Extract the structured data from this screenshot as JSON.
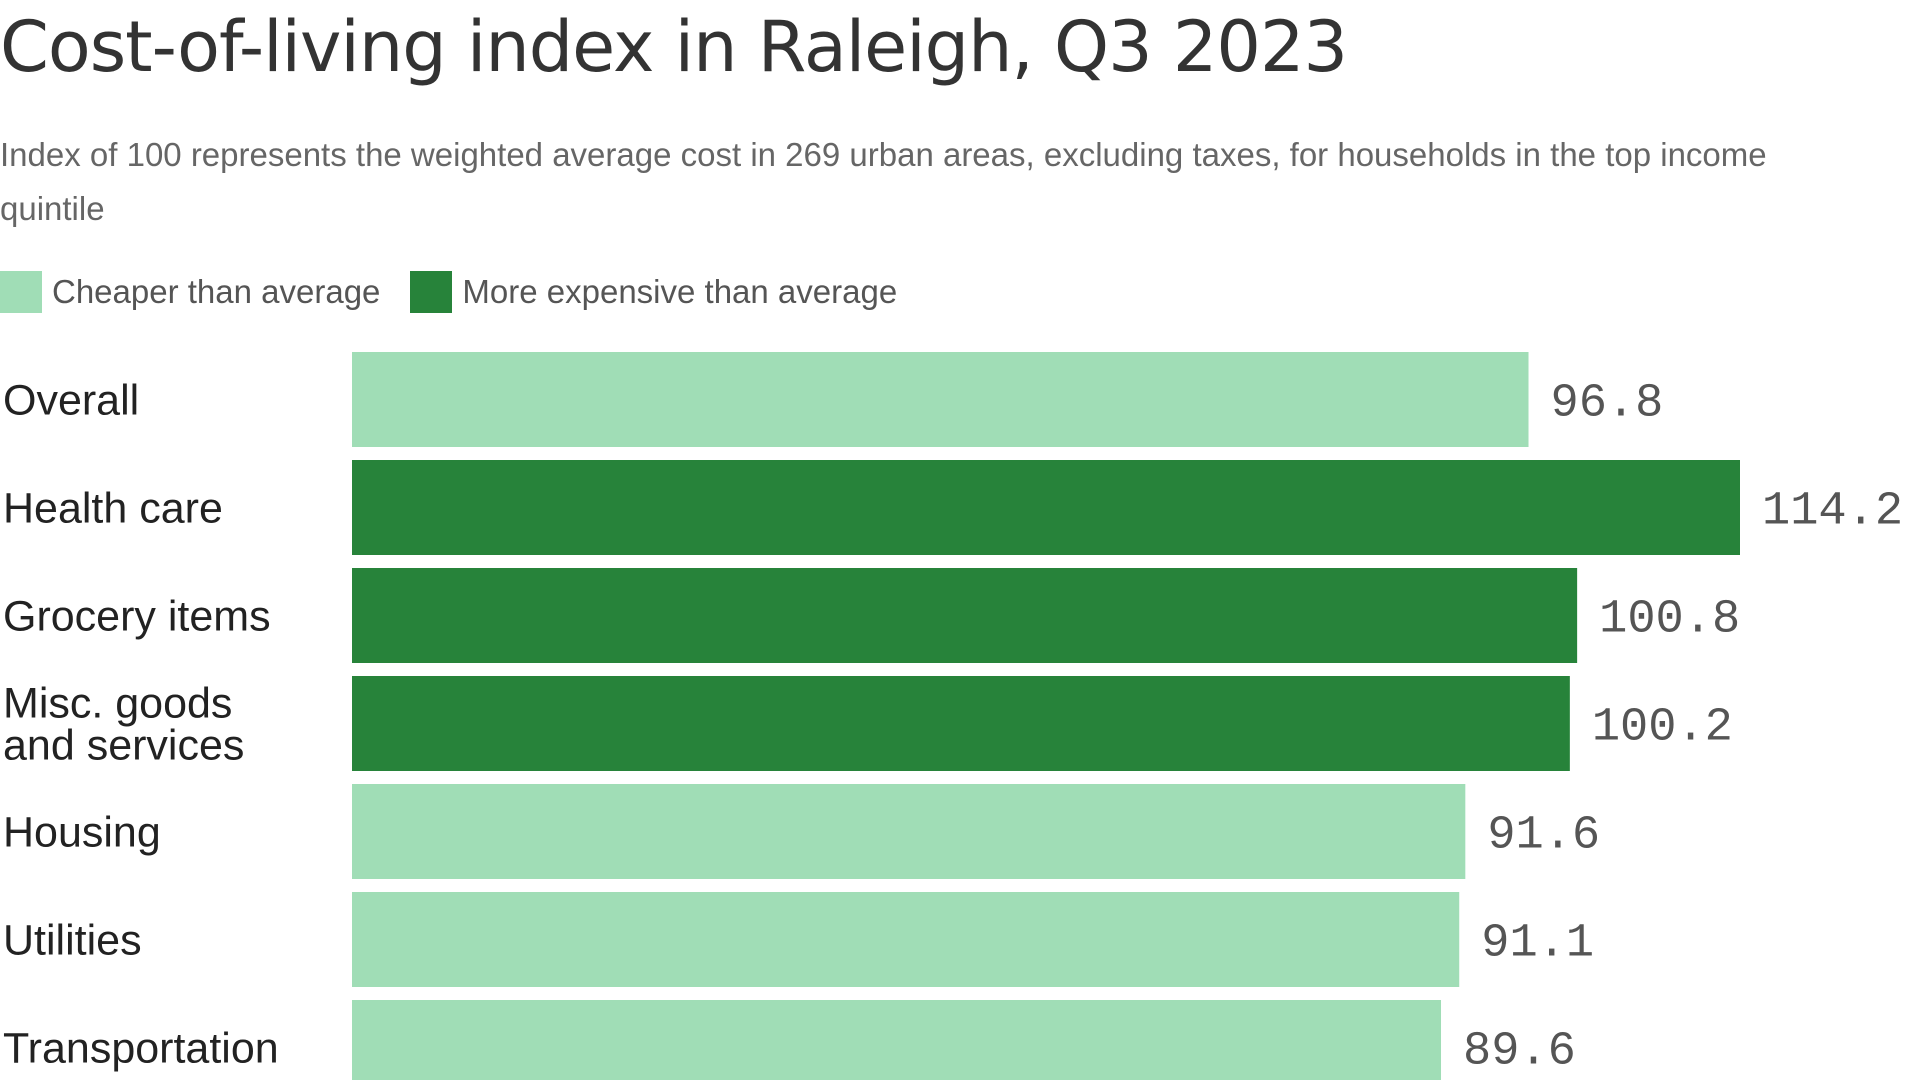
{
  "title": "Cost-of-living index in Raleigh, Q3 2023",
  "subtitle": "Index of 100 represents the weighted average cost in 269 urban areas, excluding taxes, for households in the top income quintile",
  "legend": [
    {
      "label": "Cheaper than average",
      "color": "#a0ddb6"
    },
    {
      "label": "More expensive than average",
      "color": "#27833a"
    }
  ],
  "chart_data": {
    "type": "bar",
    "orientation": "horizontal",
    "title": "Cost-of-living index in Raleigh, Q3 2023",
    "subtitle": "Index of 100 represents the weighted average cost in 269 urban areas, excluding taxes, for households in the top income quintile",
    "categories": [
      [
        "Overall"
      ],
      [
        "Health care"
      ],
      [
        "Grocery items"
      ],
      [
        "Misc. goods",
        "and services"
      ],
      [
        "Housing"
      ],
      [
        "Utilities"
      ],
      [
        "Transportation"
      ]
    ],
    "values": [
      96.8,
      114.2,
      100.8,
      100.2,
      91.6,
      91.1,
      89.6
    ],
    "value_labels": [
      "96.8",
      "114.2",
      "100.8",
      "100.2",
      "91.6",
      "91.1",
      "89.6"
    ],
    "colors": {
      "below_average": "#a0ddb6",
      "above_average": "#27833a"
    },
    "threshold": 100,
    "xlim": [
      0,
      114.2
    ],
    "grid": false,
    "legend_position": "top-left"
  }
}
